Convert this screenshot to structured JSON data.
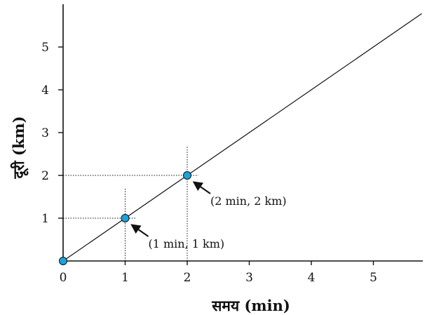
{
  "chart_data": {
    "type": "line",
    "xlabel": "समय (min)",
    "ylabel": "दूरी (km)",
    "xlim": [
      0,
      5.78
    ],
    "ylim": [
      0,
      6
    ],
    "x_ticks": [
      "0",
      "1",
      "2",
      "3",
      "4",
      "5"
    ],
    "y_ticks": [
      "1",
      "2",
      "3",
      "4",
      "5"
    ],
    "grid": false,
    "series": [
      {
        "values": [
          [
            0,
            0
          ],
          [
            5.78,
            5.78
          ]
        ],
        "color": "#111111"
      }
    ],
    "points": [
      {
        "x": 0,
        "y": 0
      },
      {
        "x": 1,
        "y": 1
      },
      {
        "x": 2,
        "y": 2
      }
    ],
    "point_color": "#1aa3dd",
    "annotations": [
      {
        "x": 1,
        "y": 1,
        "text": "(1 min, 1 km)"
      },
      {
        "x": 2,
        "y": 2,
        "text": "(2 min, 2 km)"
      }
    ]
  }
}
